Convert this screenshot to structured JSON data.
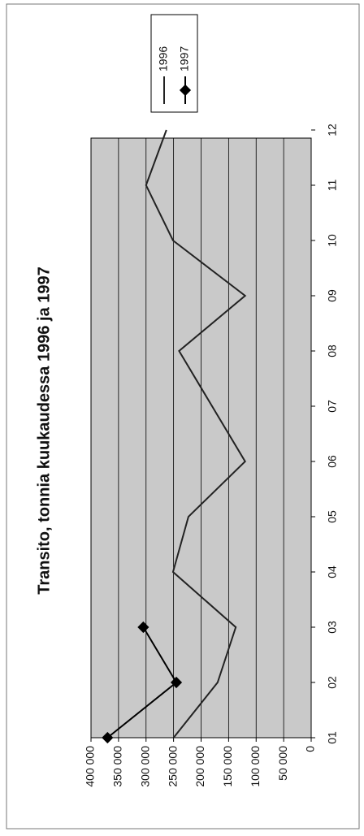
{
  "chart_data": {
    "type": "line",
    "title": "Transito, tonnia kuukaudessa 1996 ja 1997",
    "categories": [
      "01",
      "02",
      "03",
      "04",
      "05",
      "06",
      "07",
      "08",
      "09",
      "10",
      "11",
      "12"
    ],
    "series": [
      {
        "name": "1996",
        "color": "#222222",
        "values": [
          250000,
          170000,
          137000,
          251000,
          223000,
          120000,
          180000,
          240000,
          120000,
          251000,
          300000,
          263000
        ]
      },
      {
        "name": "1997",
        "color": "#000000",
        "values": [
          370000,
          245000,
          305000,
          null,
          null,
          null,
          null,
          null,
          null,
          null,
          null,
          null
        ]
      }
    ],
    "ylim": [
      0,
      400000
    ],
    "yticks": [
      {
        "value": 0,
        "label": "0"
      },
      {
        "value": 50000,
        "label": "50 000"
      },
      {
        "value": 100000,
        "label": "100 000"
      },
      {
        "value": 150000,
        "label": "150 000"
      },
      {
        "value": 200000,
        "label": "200 000"
      },
      {
        "value": 250000,
        "label": "250 000"
      },
      {
        "value": 300000,
        "label": "300 000"
      },
      {
        "value": 350000,
        "label": "350 000"
      },
      {
        "value": 400000,
        "label": "400 000"
      }
    ],
    "grid": true
  }
}
